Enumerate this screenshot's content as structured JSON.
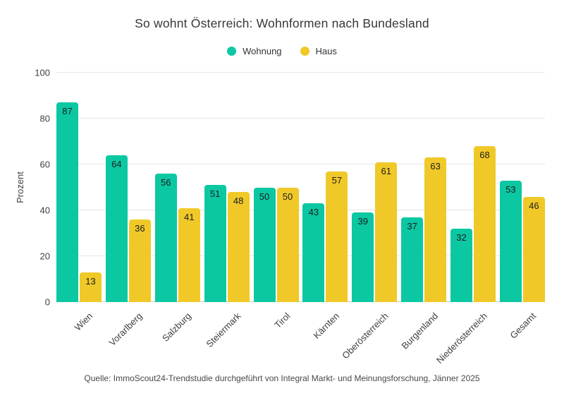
{
  "title": "So wohnt Österreich: Wohnformen nach Bundesland",
  "source": "Quelle: ImmoScout24-Trendstudie durchgeführt von Integral Markt- und Meinungsforschung, Jänner 2025",
  "colors": {
    "wohnung": "#0bc8a3",
    "haus": "#f0c929",
    "grid": "#e5e5e5",
    "baseline": "#cfcfcf",
    "text": "#3f3f3f"
  },
  "chart_data": {
    "type": "bar",
    "categories": [
      "Wien",
      "Vorarlberg",
      "Salzburg",
      "Steiermark",
      "Tirol",
      "Kärnten",
      "Oberösterreich",
      "Burgenland",
      "Niederösterreich",
      "Gesamt"
    ],
    "series": [
      {
        "name": "Wohnung",
        "color": "#0bc8a3",
        "values": [
          87,
          64,
          56,
          51,
          50,
          43,
          39,
          37,
          32,
          53
        ]
      },
      {
        "name": "Haus",
        "color": "#f0c929",
        "values": [
          13,
          36,
          41,
          48,
          50,
          57,
          61,
          63,
          68,
          46
        ]
      }
    ],
    "title": "So wohnt Österreich: Wohnformen nach Bundesland",
    "xlabel": "",
    "ylabel": "Prozent",
    "ylim": [
      0,
      100
    ],
    "yticks": [
      0,
      20,
      40,
      60,
      80,
      100
    ],
    "grid": true,
    "legend_position": "top",
    "value_labels": "inside-top"
  }
}
